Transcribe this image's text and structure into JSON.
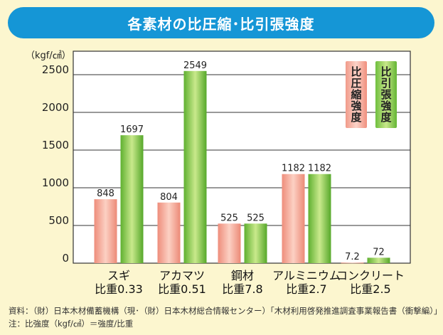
{
  "title": "各素材の比圧縮･比引張強度",
  "unit_label": "（kgf/㎠）",
  "legend": {
    "compression": "比圧縮強度",
    "tension": "比引張強度"
  },
  "y_ticks": [
    "2500",
    "2000",
    "1500",
    "1000",
    "500",
    "0"
  ],
  "categories": [
    {
      "name": "スギ",
      "sub": "比重0.33"
    },
    {
      "name": "アカマツ",
      "sub": "比重0.51"
    },
    {
      "name": "鋼材",
      "sub": "比重7.8"
    },
    {
      "name": "アルミニウム",
      "sub": "比重2.7"
    },
    {
      "name": "コンクリート",
      "sub": "比重2.5"
    }
  ],
  "footnote": {
    "source": "資料：（財）日本木材備蓄機構（現･（財）日本木材総合情報センター）「木材利用啓発推進調査事業報告書（衝撃編）」",
    "note": "注：比強度（kgf/㎠）＝強度/比重"
  },
  "colors": {
    "title_bg": "#1596d6",
    "background": "#fcf6cf",
    "plot_bg": "#ffffff",
    "compression": "#f4a090",
    "tension": "#7cc644"
  },
  "chart_data": {
    "type": "bar",
    "categories": [
      "スギ 比重0.33",
      "アカマツ 比重0.51",
      "鋼材 比重7.8",
      "アルミニウム 比重2.7",
      "コンクリート 比重2.5"
    ],
    "series": [
      {
        "name": "比圧縮強度",
        "values": [
          848,
          804,
          525,
          1182,
          7.2
        ],
        "labels": [
          "848",
          "804",
          "525",
          "1182",
          "7.2"
        ]
      },
      {
        "name": "比引張強度",
        "values": [
          1697,
          2549,
          525,
          1182,
          72
        ],
        "labels": [
          "1697",
          "2549",
          "525",
          "1182",
          "72"
        ]
      }
    ],
    "ylabel": "（kgf/㎠）",
    "ylim": [
      0,
      2700
    ],
    "yticks": [
      0,
      500,
      1000,
      1500,
      2000,
      2500
    ],
    "grid": true,
    "legend_position": "top-right"
  }
}
